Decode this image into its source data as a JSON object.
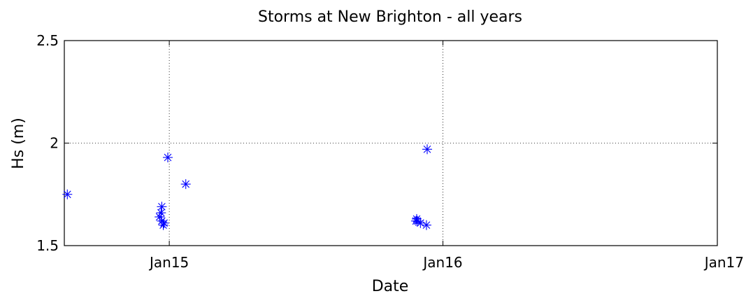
{
  "chart_data": {
    "type": "scatter",
    "title": "Storms at New Brighton - all years",
    "xlabel": "Date",
    "ylabel": "Hs (m)",
    "x_axis_type": "date",
    "xlim": [
      "2014-08-14",
      "2017-01-01"
    ],
    "ylim": [
      1.5,
      2.5
    ],
    "xticks": [
      {
        "value": "2015-01-01",
        "label": "Jan15"
      },
      {
        "value": "2016-01-01",
        "label": "Jan16"
      },
      {
        "value": "2017-01-01",
        "label": "Jan17"
      }
    ],
    "yticks": [
      {
        "value": 1.5,
        "label": "1.5"
      },
      {
        "value": 2,
        "label": "2"
      },
      {
        "value": 2.5,
        "label": "2.5"
      }
    ],
    "grid": true,
    "marker": "asterisk",
    "marker_color": "#0000ff",
    "series": [
      {
        "points": [
          {
            "x": "2014-08-18",
            "y": 1.75
          },
          {
            "x": "2014-12-19",
            "y": 1.64
          },
          {
            "x": "2014-12-21",
            "y": 1.66
          },
          {
            "x": "2014-12-22",
            "y": 1.69
          },
          {
            "x": "2014-12-22",
            "y": 1.62
          },
          {
            "x": "2014-12-24",
            "y": 1.6
          },
          {
            "x": "2014-12-25",
            "y": 1.61
          },
          {
            "x": "2014-12-30",
            "y": 1.93
          },
          {
            "x": "2015-01-23",
            "y": 1.8
          },
          {
            "x": "2015-11-26",
            "y": 1.62
          },
          {
            "x": "2015-11-27",
            "y": 1.63
          },
          {
            "x": "2015-11-28",
            "y": 1.62
          },
          {
            "x": "2015-12-02",
            "y": 1.61
          },
          {
            "x": "2015-12-10",
            "y": 1.6
          },
          {
            "x": "2015-12-11",
            "y": 1.97
          }
        ]
      }
    ]
  }
}
